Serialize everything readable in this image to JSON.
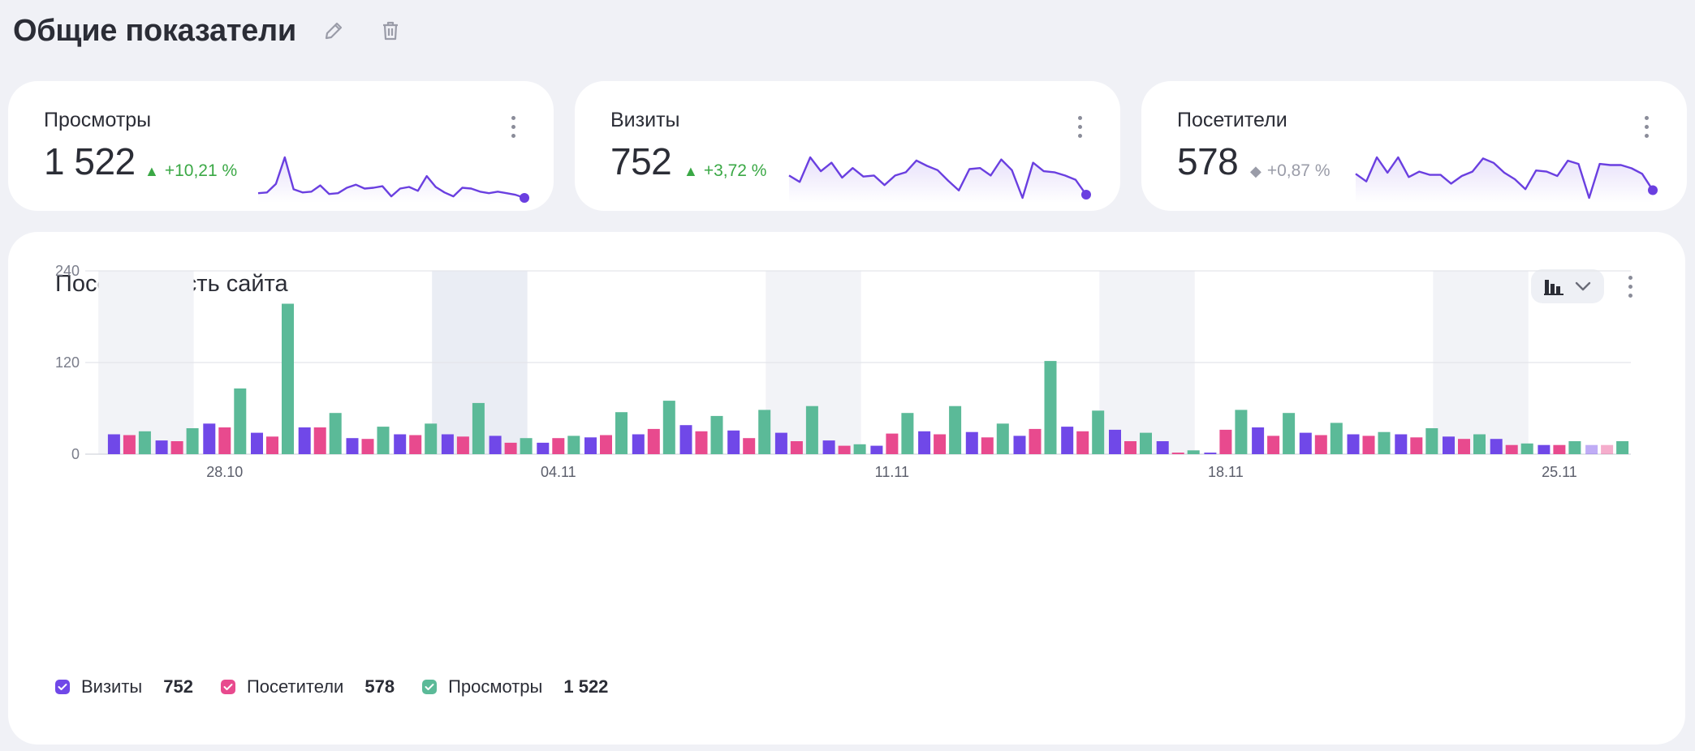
{
  "page": {
    "title": "Общие показатели",
    "edit_icon": "pencil-icon",
    "delete_icon": "trash-icon"
  },
  "kpis": [
    {
      "label": "Просмотры",
      "value": "1 522",
      "delta": "+10,21 %",
      "trend": "up",
      "color": "#6a3fe0",
      "spark": [
        12,
        13,
        24,
        58,
        17,
        13,
        14,
        22,
        11,
        12,
        19,
        23,
        18,
        19,
        21,
        8,
        18,
        20,
        15,
        34,
        20,
        13,
        8,
        19,
        18,
        14,
        12,
        14,
        12,
        10,
        6
      ]
    },
    {
      "label": "Визиты",
      "value": "752",
      "delta": "+3,72 %",
      "trend": "up",
      "color": "#6a3fe0",
      "spark": [
        26,
        20,
        43,
        30,
        38,
        24,
        33,
        25,
        26,
        17,
        26,
        29,
        40,
        35,
        31,
        21,
        12,
        32,
        33,
        26,
        41,
        31,
        5,
        38,
        30,
        29,
        26,
        22,
        8
      ]
    },
    {
      "label": "Посетители",
      "value": "578",
      "delta": "+0,87 %",
      "trend": "flat",
      "color": "#6a3fe0",
      "spark": [
        28,
        21,
        43,
        29,
        43,
        25,
        30,
        27,
        27,
        19,
        26,
        30,
        42,
        38,
        29,
        23,
        14,
        31,
        30,
        26,
        40,
        37,
        6,
        37,
        36,
        36,
        33,
        28,
        13
      ]
    }
  ],
  "chart": {
    "title": "Посещаемость сайта",
    "type_icon": "bar-chart-icon",
    "dropdown_icon": "chevron-down-icon",
    "menu_icon": "more-vertical-icon"
  },
  "chart_data": {
    "type": "bar",
    "y_ticks": [
      "240",
      "120",
      "0"
    ],
    "ylim": [
      0,
      240
    ],
    "x_tick_labels": [
      "28.10",
      "04.11",
      "11.11",
      "18.11",
      "25.11"
    ],
    "categories": [
      "26.10",
      "27.10",
      "28.10",
      "29.10",
      "30.10",
      "31.10",
      "01.11",
      "02.11",
      "03.11",
      "04.11",
      "05.11",
      "06.11",
      "07.11",
      "08.11",
      "09.11",
      "10.11",
      "11.11",
      "12.11",
      "13.11",
      "14.11",
      "15.11",
      "16.11",
      "17.11",
      "18.11",
      "19.11",
      "20.11",
      "21.11",
      "22.11",
      "23.11",
      "24.11",
      "25.11",
      "26.11"
    ],
    "series": [
      {
        "name": "Визиты",
        "color": "#7048e8",
        "total": "752",
        "values": [
          26,
          18,
          40,
          28,
          35,
          21,
          26,
          26,
          24,
          15,
          22,
          26,
          38,
          31,
          28,
          18,
          11,
          30,
          29,
          24,
          36,
          32,
          17,
          2,
          35,
          28,
          26,
          26,
          23,
          20,
          12,
          12
        ]
      },
      {
        "name": "Посетители",
        "color": "#e84a8e",
        "total": "578",
        "values": [
          25,
          17,
          35,
          23,
          35,
          20,
          25,
          23,
          15,
          21,
          25,
          33,
          30,
          21,
          17,
          11,
          27,
          26,
          22,
          33,
          30,
          17,
          2,
          32,
          24,
          25,
          24,
          22,
          20,
          12,
          12,
          12
        ]
      },
      {
        "name": "Просмотры",
        "color": "#5bba98",
        "total": "1 522",
        "values": [
          30,
          34,
          86,
          197,
          54,
          36,
          40,
          67,
          21,
          24,
          55,
          70,
          50,
          58,
          63,
          13,
          54,
          63,
          40,
          122,
          57,
          28,
          5,
          58,
          54,
          41,
          29,
          34,
          26,
          14,
          17,
          17
        ]
      }
    ],
    "grid": true,
    "legend": "bottom-left"
  }
}
